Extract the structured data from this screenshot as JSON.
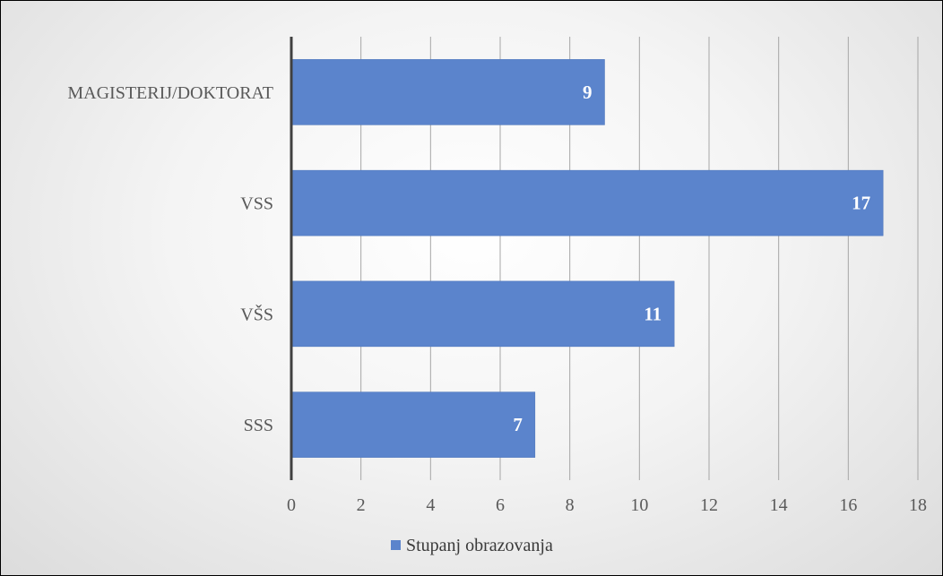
{
  "chart_data": {
    "type": "bar",
    "orientation": "horizontal",
    "categories": [
      "MAGISTERIJ/DOKTORAT",
      "VSS",
      "VŠS",
      "SSS"
    ],
    "series": [
      {
        "name": "Stupanj obrazovanja",
        "values": [
          9,
          17,
          11,
          7
        ],
        "color": "#5b84cc"
      }
    ],
    "xlim": [
      0,
      18
    ],
    "xticks": [
      0,
      2,
      4,
      6,
      8,
      10,
      12,
      14,
      16,
      18
    ],
    "grid": true,
    "legend_position": "bottom",
    "data_labels": true
  }
}
